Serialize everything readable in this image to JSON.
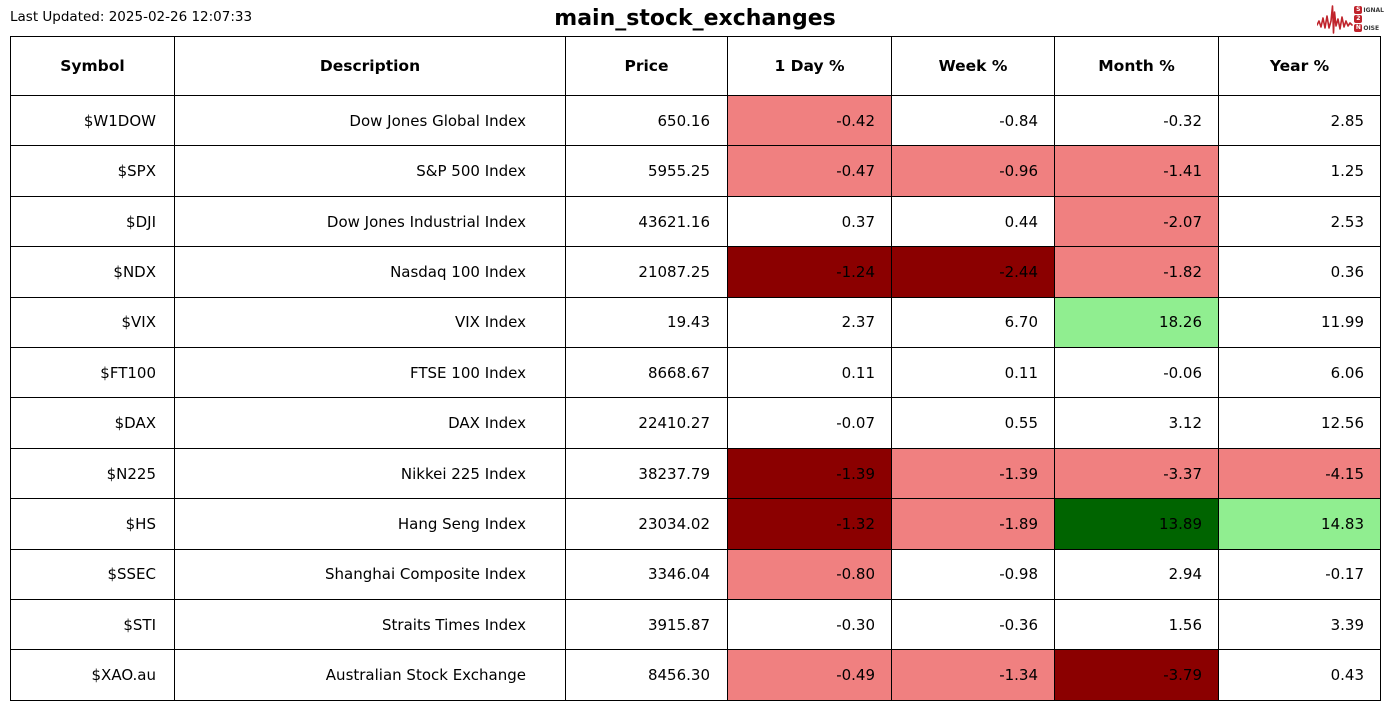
{
  "header": {
    "last_updated": "Last Updated: 2025-02-26 12:07:33",
    "title": "main_stock_exchanges",
    "logo": {
      "word1_first": "S",
      "word1_rest": "IGNAL",
      "word2": "2",
      "word3_first": "N",
      "word3_rest": "OISE"
    }
  },
  "colors": {
    "none": "#FFFFFF",
    "light_red": "#F08080",
    "dark_red": "#8B0000",
    "light_green": "#90EE90",
    "dark_green": "#006400",
    "logo_red": "#C0242C",
    "border": "#000000"
  },
  "table": {
    "columns": [
      "Symbol",
      "Description",
      "Price",
      "1 Day %",
      "Week %",
      "Month %",
      "Year %"
    ],
    "rows": [
      {
        "symbol": "$W1DOW",
        "description": "Dow Jones Global Index",
        "price": "650.16",
        "pct": [
          {
            "value": "-0.42",
            "bg": "light_red"
          },
          {
            "value": "-0.84",
            "bg": "none"
          },
          {
            "value": "-0.32",
            "bg": "none"
          },
          {
            "value": "2.85",
            "bg": "none"
          }
        ]
      },
      {
        "symbol": "$SPX",
        "description": "S&P 500 Index",
        "price": "5955.25",
        "pct": [
          {
            "value": "-0.47",
            "bg": "light_red"
          },
          {
            "value": "-0.96",
            "bg": "light_red"
          },
          {
            "value": "-1.41",
            "bg": "light_red"
          },
          {
            "value": "1.25",
            "bg": "none"
          }
        ]
      },
      {
        "symbol": "$DJI",
        "description": "Dow Jones Industrial Index",
        "price": "43621.16",
        "pct": [
          {
            "value": "0.37",
            "bg": "none"
          },
          {
            "value": "0.44",
            "bg": "none"
          },
          {
            "value": "-2.07",
            "bg": "light_red"
          },
          {
            "value": "2.53",
            "bg": "none"
          }
        ]
      },
      {
        "symbol": "$NDX",
        "description": "Nasdaq 100 Index",
        "price": "21087.25",
        "pct": [
          {
            "value": "-1.24",
            "bg": "dark_red"
          },
          {
            "value": "-2.44",
            "bg": "dark_red"
          },
          {
            "value": "-1.82",
            "bg": "light_red"
          },
          {
            "value": "0.36",
            "bg": "none"
          }
        ]
      },
      {
        "symbol": "$VIX",
        "description": "VIX Index",
        "price": "19.43",
        "pct": [
          {
            "value": "2.37",
            "bg": "none"
          },
          {
            "value": "6.70",
            "bg": "none"
          },
          {
            "value": "18.26",
            "bg": "light_green"
          },
          {
            "value": "11.99",
            "bg": "none"
          }
        ]
      },
      {
        "symbol": "$FT100",
        "description": "FTSE 100 Index",
        "price": "8668.67",
        "pct": [
          {
            "value": "0.11",
            "bg": "none"
          },
          {
            "value": "0.11",
            "bg": "none"
          },
          {
            "value": "-0.06",
            "bg": "none"
          },
          {
            "value": "6.06",
            "bg": "none"
          }
        ]
      },
      {
        "symbol": "$DAX",
        "description": "DAX Index",
        "price": "22410.27",
        "pct": [
          {
            "value": "-0.07",
            "bg": "none"
          },
          {
            "value": "0.55",
            "bg": "none"
          },
          {
            "value": "3.12",
            "bg": "none"
          },
          {
            "value": "12.56",
            "bg": "none"
          }
        ]
      },
      {
        "symbol": "$N225",
        "description": "Nikkei 225 Index",
        "price": "38237.79",
        "pct": [
          {
            "value": "-1.39",
            "bg": "dark_red"
          },
          {
            "value": "-1.39",
            "bg": "light_red"
          },
          {
            "value": "-3.37",
            "bg": "light_red"
          },
          {
            "value": "-4.15",
            "bg": "light_red"
          }
        ]
      },
      {
        "symbol": "$HS",
        "description": "Hang Seng Index",
        "price": "23034.02",
        "pct": [
          {
            "value": "-1.32",
            "bg": "dark_red"
          },
          {
            "value": "-1.89",
            "bg": "light_red"
          },
          {
            "value": "13.89",
            "bg": "dark_green"
          },
          {
            "value": "14.83",
            "bg": "light_green"
          }
        ]
      },
      {
        "symbol": "$SSEC",
        "description": "Shanghai Composite Index",
        "price": "3346.04",
        "pct": [
          {
            "value": "-0.80",
            "bg": "light_red"
          },
          {
            "value": "-0.98",
            "bg": "none"
          },
          {
            "value": "2.94",
            "bg": "none"
          },
          {
            "value": "-0.17",
            "bg": "none"
          }
        ]
      },
      {
        "symbol": "$STI",
        "description": "Straits Times Index",
        "price": "3915.87",
        "pct": [
          {
            "value": "-0.30",
            "bg": "none"
          },
          {
            "value": "-0.36",
            "bg": "none"
          },
          {
            "value": "1.56",
            "bg": "none"
          },
          {
            "value": "3.39",
            "bg": "none"
          }
        ]
      },
      {
        "symbol": "$XAO.au",
        "description": "Australian Stock Exchange",
        "price": "8456.30",
        "pct": [
          {
            "value": "-0.49",
            "bg": "light_red"
          },
          {
            "value": "-1.34",
            "bg": "light_red"
          },
          {
            "value": "-3.79",
            "bg": "dark_red"
          },
          {
            "value": "0.43",
            "bg": "none"
          }
        ]
      }
    ]
  }
}
